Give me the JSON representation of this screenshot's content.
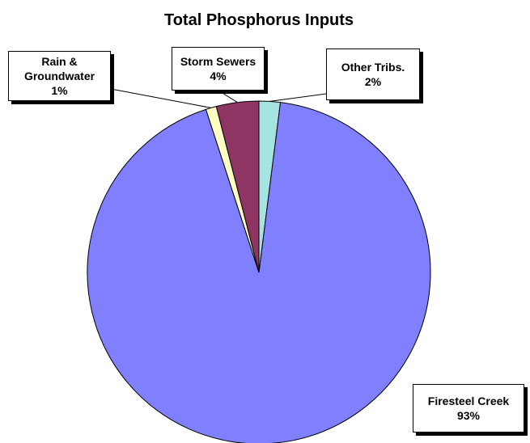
{
  "chart_data": {
    "type": "pie",
    "title": "Total Phosphorus Inputs",
    "categories": [
      "Other Tribs.",
      "Firesteel Creek",
      "Rain & Groundwater",
      "Storm Sewers"
    ],
    "values": [
      2,
      93,
      1,
      4
    ],
    "value_labels": [
      "2%",
      "93%",
      "1%",
      "4%"
    ],
    "colors": [
      "#a6e3e3",
      "#8080ff",
      "#ffffc4",
      "#8e3563"
    ]
  }
}
